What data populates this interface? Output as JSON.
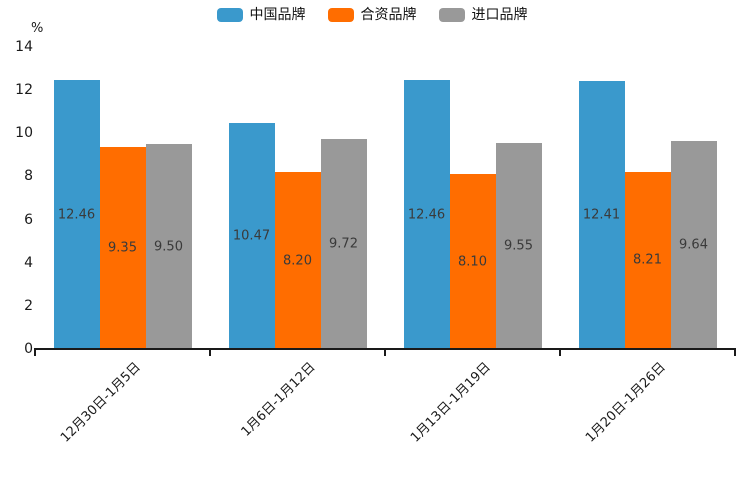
{
  "chart_data": {
    "type": "bar",
    "categories": [
      "12月30日-1月5日",
      "1月6日-1月12日",
      "1月13日-1月19日",
      "1月20日-1月26日"
    ],
    "series": [
      {
        "name": "中国品牌",
        "color": "#3A99CC",
        "values": [
          12.46,
          10.47,
          12.46,
          12.41
        ]
      },
      {
        "name": "合资品牌",
        "color": "#FF6D00",
        "values": [
          9.35,
          8.2,
          8.1,
          8.21
        ]
      },
      {
        "name": "进口品牌",
        "color": "#999999",
        "values": [
          9.5,
          9.72,
          9.55,
          9.64
        ]
      }
    ],
    "title": "",
    "xlabel": "",
    "ylabel": "%",
    "ylim": [
      0,
      14
    ],
    "yticks": [
      0,
      2,
      4,
      6,
      8,
      10,
      12,
      14
    ],
    "grid": false,
    "legend_position": "top",
    "value_label_decimals": 2
  }
}
